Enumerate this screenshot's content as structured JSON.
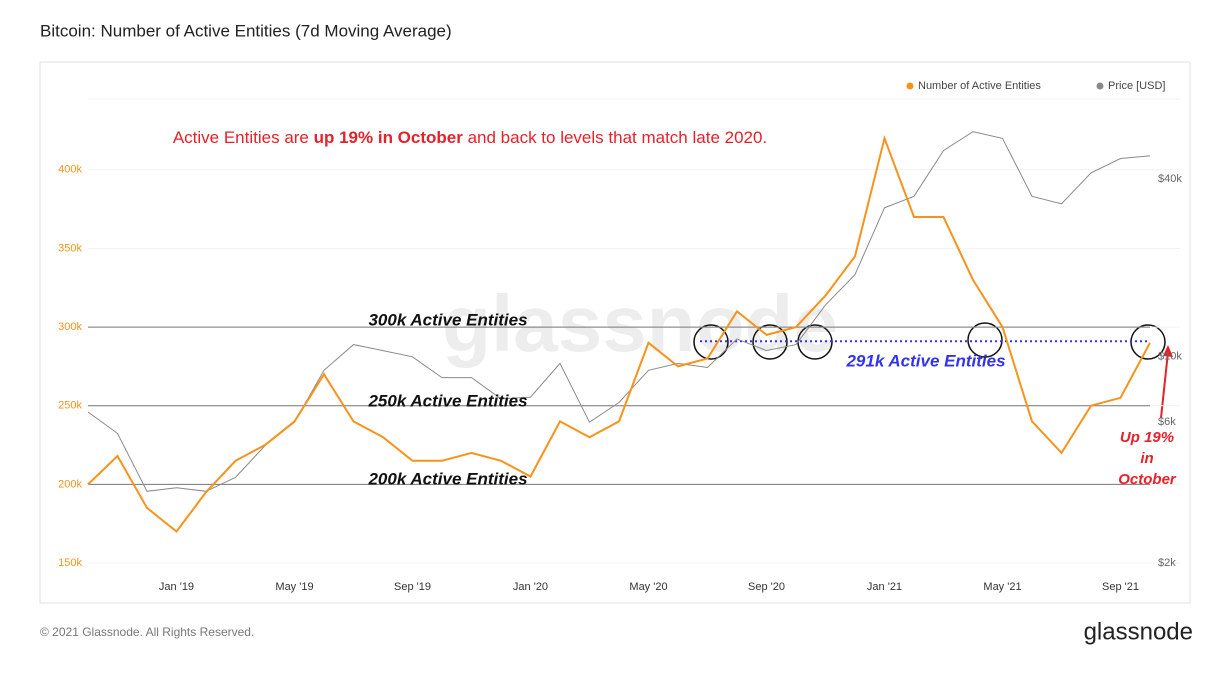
{
  "chart_data": {
    "type": "line",
    "title": "Bitcoin: Number of Active Entities (7d Moving Average)",
    "annotation_parts": [
      "Active Entities are ",
      "up 19% in October",
      " and back to levels that match late 2020."
    ],
    "x": [
      "2018-10",
      "2018-11",
      "2018-12",
      "2019-01",
      "2019-02",
      "2019-03",
      "2019-04",
      "2019-05",
      "2019-06",
      "2019-07",
      "2019-08",
      "2019-09",
      "2019-10",
      "2019-11",
      "2019-12",
      "2020-01",
      "2020-02",
      "2020-03",
      "2020-04",
      "2020-05",
      "2020-06",
      "2020-07",
      "2020-08",
      "2020-09",
      "2020-10",
      "2020-11",
      "2020-12",
      "2021-01",
      "2021-02",
      "2021-03",
      "2021-04",
      "2021-05",
      "2021-06",
      "2021-07",
      "2021-08",
      "2021-09",
      "2021-10"
    ],
    "xlim": [
      "2018-10",
      "2021-10"
    ],
    "xticks": [
      {
        "value": "2019-01",
        "label": "Jan '19"
      },
      {
        "value": "2019-05",
        "label": "May '19"
      },
      {
        "value": "2019-09",
        "label": "Sep '19"
      },
      {
        "value": "2020-01",
        "label": "Jan '20"
      },
      {
        "value": "2020-05",
        "label": "May '20"
      },
      {
        "value": "2020-09",
        "label": "Sep '20"
      },
      {
        "value": "2021-01",
        "label": "Jan '21"
      },
      {
        "value": "2021-05",
        "label": "May '21"
      },
      {
        "value": "2021-09",
        "label": "Sep '21"
      }
    ],
    "ylim": [
      150000,
      445000
    ],
    "yticks": [
      {
        "value": 150000,
        "label": "150k"
      },
      {
        "value": 200000,
        "label": "200k"
      },
      {
        "value": 250000,
        "label": "250k"
      },
      {
        "value": 300000,
        "label": "300k"
      },
      {
        "value": 350000,
        "label": "350k"
      },
      {
        "value": 400000,
        "label": "400k"
      }
    ],
    "y2lim": [
      2000,
      74800
    ],
    "y2_log": true,
    "y2ticks": [
      {
        "value": 2000,
        "label": "$2k"
      },
      {
        "value": 6000,
        "label": "$6k"
      },
      {
        "value": 10000,
        "label": "$10k"
      },
      {
        "value": 40000,
        "label": "$40k"
      }
    ],
    "grid": true,
    "legend": "top-right",
    "series": [
      {
        "name": "Number of Active Entities",
        "color": "#f7931a",
        "values": [
          200000,
          218000,
          185000,
          170000,
          195000,
          215000,
          225000,
          240000,
          270000,
          240000,
          230000,
          215000,
          215000,
          220000,
          215000,
          205000,
          240000,
          230000,
          240000,
          290000,
          275000,
          280000,
          310000,
          295000,
          300000,
          320000,
          345000,
          420000,
          370000,
          370000,
          330000,
          300000,
          240000,
          220000,
          250000,
          255000,
          290000
        ]
      },
      {
        "name": "Price [USD]",
        "color": "#8a8a8a",
        "axis": "y2",
        "values": [
          6500,
          5500,
          3500,
          3600,
          3500,
          3900,
          5000,
          6000,
          9000,
          11000,
          10500,
          10000,
          8500,
          8500,
          7200,
          7300,
          9500,
          6000,
          7000,
          9000,
          9500,
          9200,
          11500,
          10500,
          11000,
          15000,
          19000,
          32000,
          35000,
          50000,
          58000,
          55000,
          35000,
          33000,
          42000,
          47000,
          48000
        ]
      }
    ],
    "reference_lines": [
      {
        "value": 300000,
        "label": "300k Active Entities"
      },
      {
        "value": 250000,
        "label": "250k Active Entities"
      },
      {
        "value": 200000,
        "label": "200k Active Entities"
      },
      {
        "value": 291000,
        "label": "291k Active Entities"
      }
    ],
    "callout": [
      "Up 19%",
      "in",
      "October"
    ],
    "watermark": "glassnode",
    "footer": "© 2021 Glassnode. All Rights Reserved.",
    "logo": "glassnode"
  }
}
